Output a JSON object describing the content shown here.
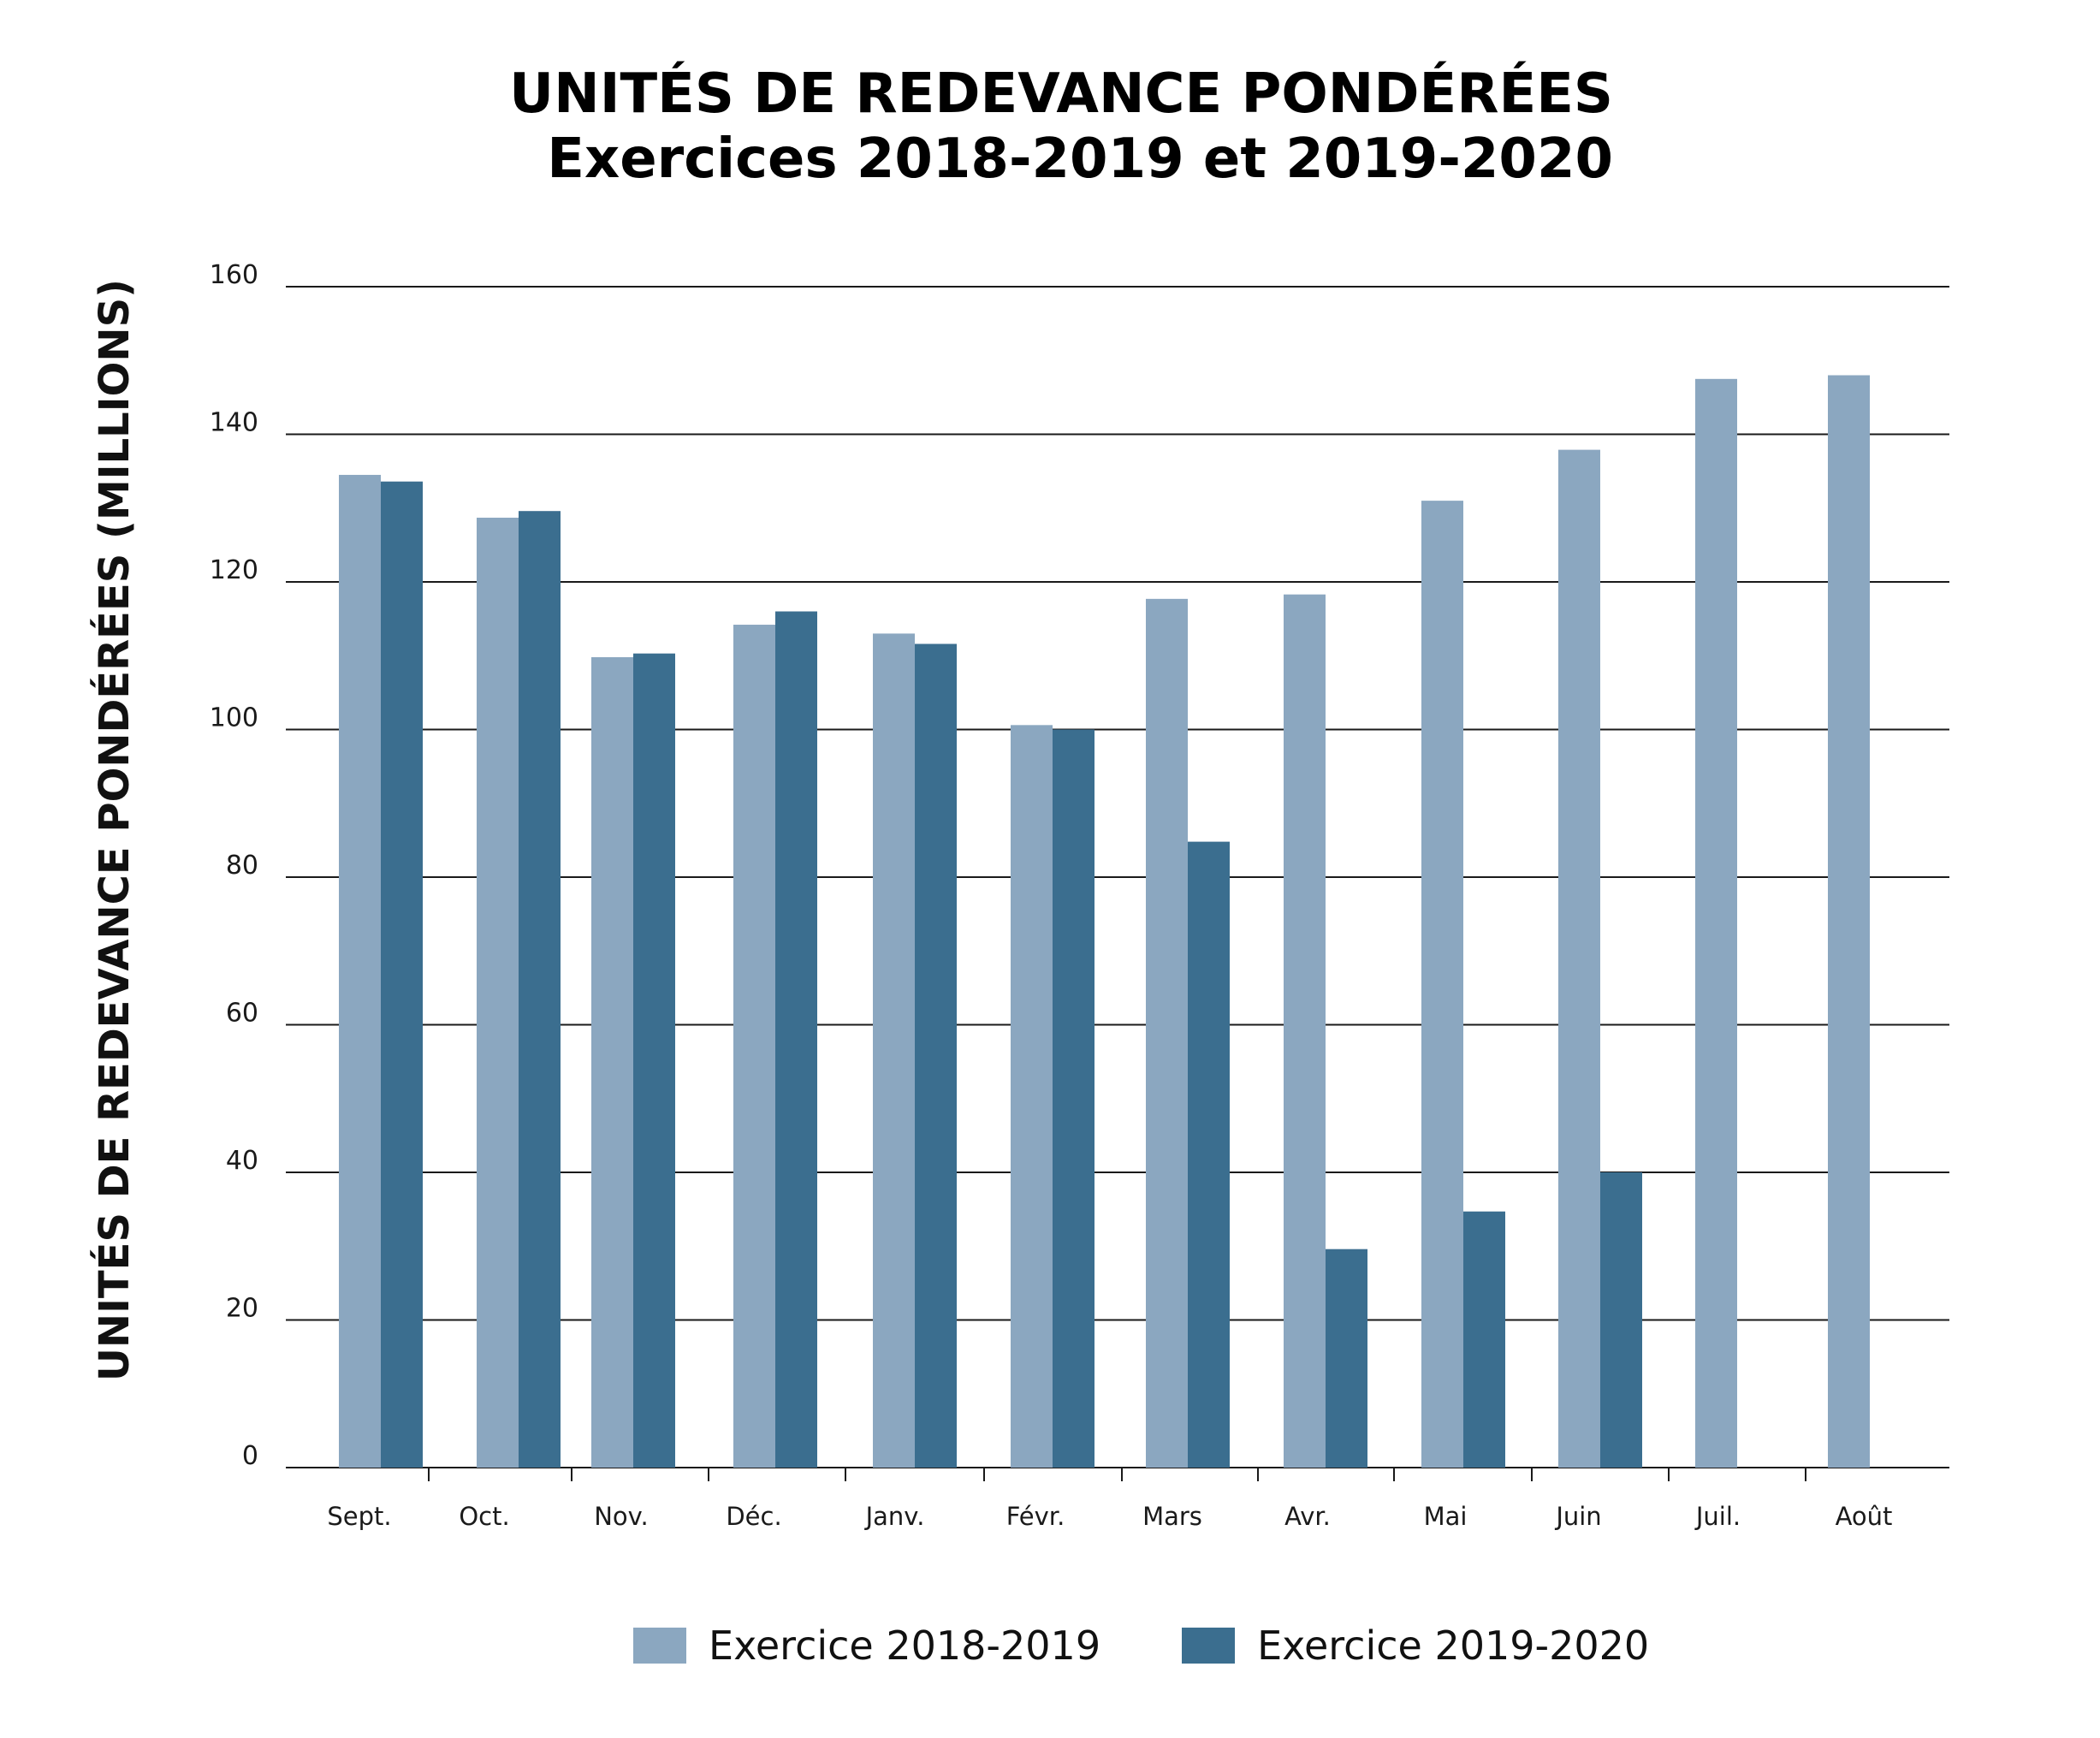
{
  "chart_data": {
    "type": "bar",
    "title": "UNITÉS DE REDEVANCE PONDÉRÉES",
    "subtitle": "Exercices 2018-2019 et 2019-2020",
    "xlabel": "",
    "ylabel": "UNITÉS DE REDEVANCE PONDÉRÉES (MILLIONS)",
    "ylim": [
      0,
      160
    ],
    "yticks": [
      "0",
      "20",
      "40",
      "60",
      "80",
      "100",
      "120",
      "140",
      "160"
    ],
    "grid": true,
    "legend_position": "bottom",
    "categories": [
      "Sept.",
      "Oct.",
      "Nov.",
      "Déc.",
      "Janv.",
      "Févr.",
      "Mars",
      "Avr.",
      "Mai",
      "Juin",
      "Juil.",
      "Août"
    ],
    "series": [
      {
        "name": "Exercice 2018-2019",
        "color": "#8ba7c0",
        "values": [
          134.5,
          128.7,
          109.8,
          114.2,
          113.0,
          100.6,
          117.7,
          118.3,
          131.0,
          137.9,
          147.5,
          148.0
        ]
      },
      {
        "name": "Exercice 2019-2020",
        "color": "#3b6e8f",
        "values": [
          133.6,
          129.6,
          110.3,
          116.0,
          111.6,
          100.0,
          84.8,
          29.6,
          34.7,
          40.0,
          null,
          null
        ]
      }
    ]
  }
}
